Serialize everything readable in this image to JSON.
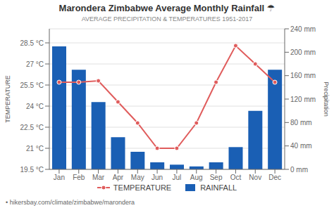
{
  "chart_data": {
    "type": "bar",
    "title": "Marondera Zimbabwe Average Monthly Rainfall ☂",
    "subtitle": "AVERAGE PRECIPITATION & TEMPERATURES 1951-2017",
    "footer": "• hikersbay.com/climate/zimbabwe/marondera",
    "categories": [
      "Jan",
      "Feb",
      "Mar",
      "Apr",
      "May",
      "Jun",
      "Jul",
      "Aug",
      "Sep",
      "Oct",
      "Nov",
      "Dec"
    ],
    "series": [
      {
        "name": "TEMPERATURE",
        "type": "line",
        "color": "#e05c5c",
        "marker": "circle",
        "values": [
          25.7,
          25.7,
          25.8,
          24.3,
          22.8,
          21.0,
          21.0,
          22.8,
          25.7,
          28.3,
          27.0,
          25.7
        ]
      },
      {
        "name": "RAINFALL",
        "type": "bar",
        "axis": "y2",
        "color": "#1a5fb4",
        "values": [
          210,
          170,
          115,
          55,
          30,
          12,
          8,
          5,
          12,
          38,
          100,
          170
        ]
      }
    ],
    "ylabel": "TEMPERATURE",
    "y2label": "Precipitation",
    "ylim": [
      19.5,
      29.5
    ],
    "yticks": [
      {
        "value": 19.5,
        "label": "19.5 °C"
      },
      {
        "value": 21.0,
        "label": "21 °C"
      },
      {
        "value": 22.5,
        "label": "22.5 °C"
      },
      {
        "value": 24.0,
        "label": "24 °C"
      },
      {
        "value": 25.5,
        "label": "25.5 °C"
      },
      {
        "value": 27.0,
        "label": "27 °C"
      },
      {
        "value": 28.5,
        "label": "28.5 °C"
      }
    ],
    "y2lim": [
      0,
      240
    ],
    "y2ticks": [
      {
        "value": 0,
        "label": "0 mm"
      },
      {
        "value": 40,
        "label": "40 mm"
      },
      {
        "value": 80,
        "label": "80 mm"
      },
      {
        "value": 120,
        "label": "120 mm"
      },
      {
        "value": 160,
        "label": "160 mm"
      },
      {
        "value": 200,
        "label": "200 mm"
      },
      {
        "value": 240,
        "label": "240 mm"
      }
    ],
    "grid": true,
    "legend": "bottom"
  }
}
